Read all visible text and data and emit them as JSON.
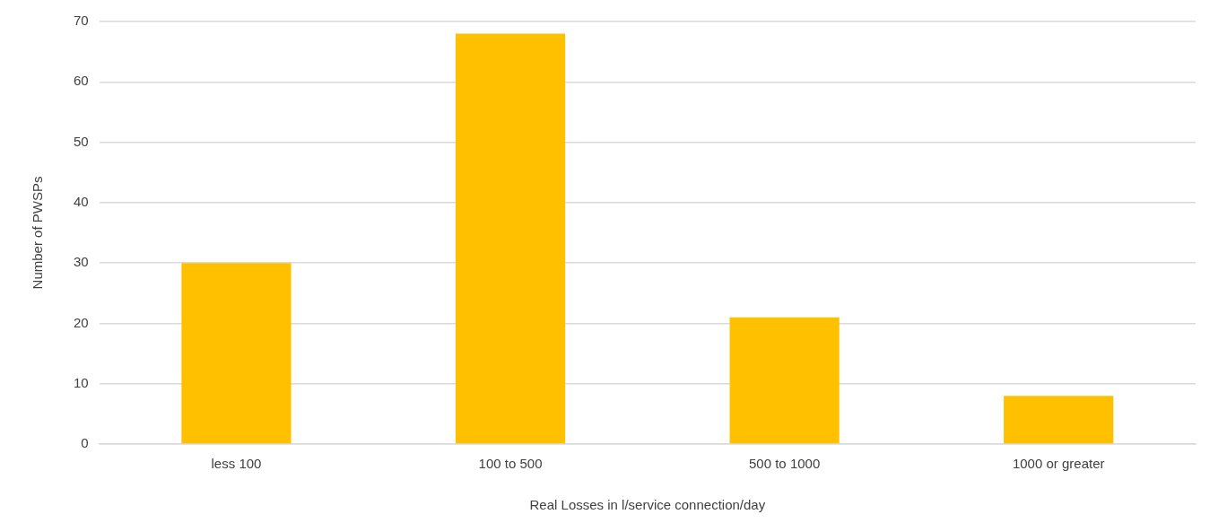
{
  "chart_data": {
    "type": "bar",
    "xlabel": "Real Losses in l/service connection/day",
    "ylabel": "Number of PWSPs",
    "categories": [
      "less 100",
      "100 to 500",
      "500 to 1000",
      "1000 or greater"
    ],
    "values": [
      30,
      68,
      21,
      8
    ],
    "color": "#ffc000",
    "ylim": [
      0,
      70
    ],
    "yticks": [
      0,
      10,
      20,
      30,
      40,
      50,
      60,
      70
    ],
    "grid": "y",
    "legend": false
  }
}
